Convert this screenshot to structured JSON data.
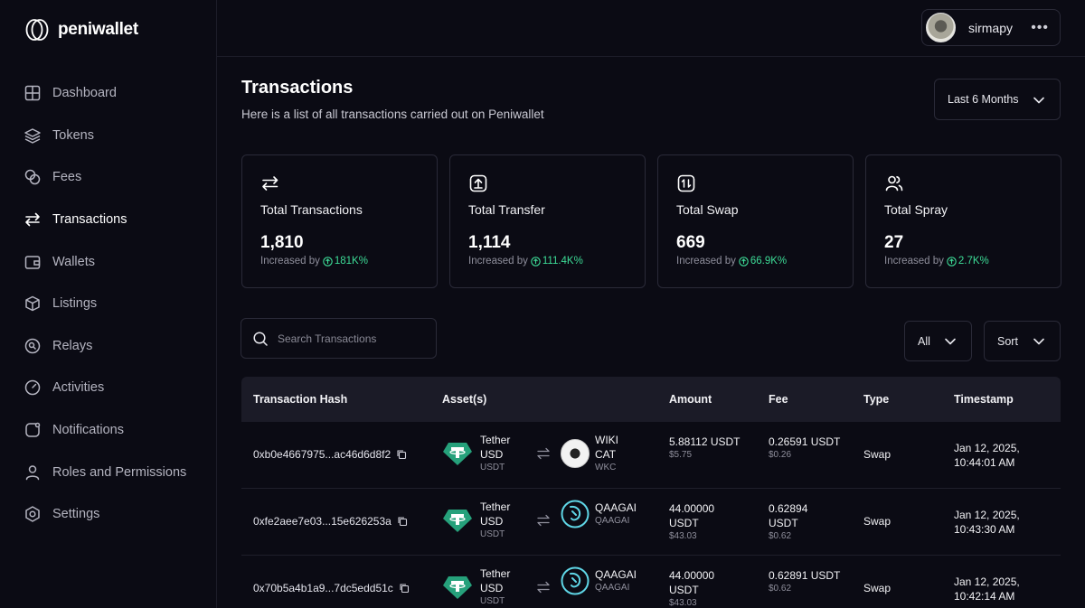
{
  "brand": {
    "name": "peniwallet"
  },
  "user": {
    "name": "sirmapy",
    "more_icon": "more-horizontal-icon"
  },
  "nav": [
    {
      "label": "Dashboard",
      "icon": "grid-icon"
    },
    {
      "label": "Tokens",
      "icon": "layers-icon"
    },
    {
      "label": "Fees",
      "icon": "coins-icon"
    },
    {
      "label": "Transactions",
      "icon": "transfer-arrows-icon",
      "active": true
    },
    {
      "label": "Wallets",
      "icon": "wallet-icon"
    },
    {
      "label": "Listings",
      "icon": "cube-icon"
    },
    {
      "label": "Relays",
      "icon": "relay-icon"
    },
    {
      "label": "Activities",
      "icon": "gauge-icon"
    },
    {
      "label": "Notifications",
      "icon": "bell-icon"
    },
    {
      "label": "Roles and Permissions",
      "icon": "user-icon"
    },
    {
      "label": "Settings",
      "icon": "settings-icon"
    }
  ],
  "page": {
    "title": "Transactions",
    "subtitle": "Here is a list of all transactions carried out on Peniwallet",
    "range": "Last 6 Months"
  },
  "stats": [
    {
      "label": "Total Transactions",
      "value": "1,810",
      "inc_label": "Increased by",
      "inc_value": "181K%"
    },
    {
      "label": "Total Transfer",
      "value": "1,114",
      "inc_label": "Increased by",
      "inc_value": "111.4K%"
    },
    {
      "label": "Total Swap",
      "value": "669",
      "inc_label": "Increased by",
      "inc_value": "66.9K%"
    },
    {
      "label": "Total Spray",
      "value": "27",
      "inc_label": "Increased by",
      "inc_value": "2.7K%"
    }
  ],
  "search": {
    "placeholder": "Search Transactions"
  },
  "filters": {
    "type": "All",
    "sort": "Sort"
  },
  "colors": {
    "accent_green": "#3ddc97",
    "tether": "#26a17b",
    "bg": "#0b0b14"
  },
  "table": {
    "headers": [
      "Transaction Hash",
      "Asset(s)",
      "Amount",
      "Fee",
      "Type",
      "Timestamp"
    ],
    "rows": [
      {
        "hash": "0xb0e4667975...ac46d6d8f2",
        "asset_a_l1": "Tether",
        "asset_a_l2": "USD",
        "asset_a_sym": "USDT",
        "asset_b_l1": "WIKI",
        "asset_b_l2": "CAT",
        "asset_b_sym": "WKC",
        "amount_l1": "5.88112 USDT",
        "amount_l2": "",
        "amount_usd": "$5.75",
        "fee_l1": "0.26591 USDT",
        "fee_l2": "",
        "fee_usd": "$0.26",
        "type": "Swap",
        "ts_date": "Jan 12, 2025,",
        "ts_time": "10:44:01 AM"
      },
      {
        "hash": "0xfe2aee7e03...15e626253a",
        "asset_a_l1": "Tether",
        "asset_a_l2": "USD",
        "asset_a_sym": "USDT",
        "asset_b_l1": "QAAGAI",
        "asset_b_l2": "",
        "asset_b_sym": "QAAGAI",
        "amount_l1": "44.00000",
        "amount_l2": "USDT",
        "amount_usd": "$43.03",
        "fee_l1": "0.62894",
        "fee_l2": "USDT",
        "fee_usd": "$0.62",
        "type": "Swap",
        "ts_date": "Jan 12, 2025,",
        "ts_time": "10:43:30 AM"
      },
      {
        "hash": "0x70b5a4b1a9...7dc5edd51c",
        "asset_a_l1": "Tether",
        "asset_a_l2": "USD",
        "asset_a_sym": "USDT",
        "asset_b_l1": "QAAGAI",
        "asset_b_l2": "",
        "asset_b_sym": "QAAGAI",
        "amount_l1": "44.00000",
        "amount_l2": "USDT",
        "amount_usd": "$43.03",
        "fee_l1": "0.62891 USDT",
        "fee_l2": "",
        "fee_usd": "$0.62",
        "type": "Swap",
        "ts_date": "Jan 12, 2025,",
        "ts_time": "10:42:14 AM"
      }
    ]
  }
}
